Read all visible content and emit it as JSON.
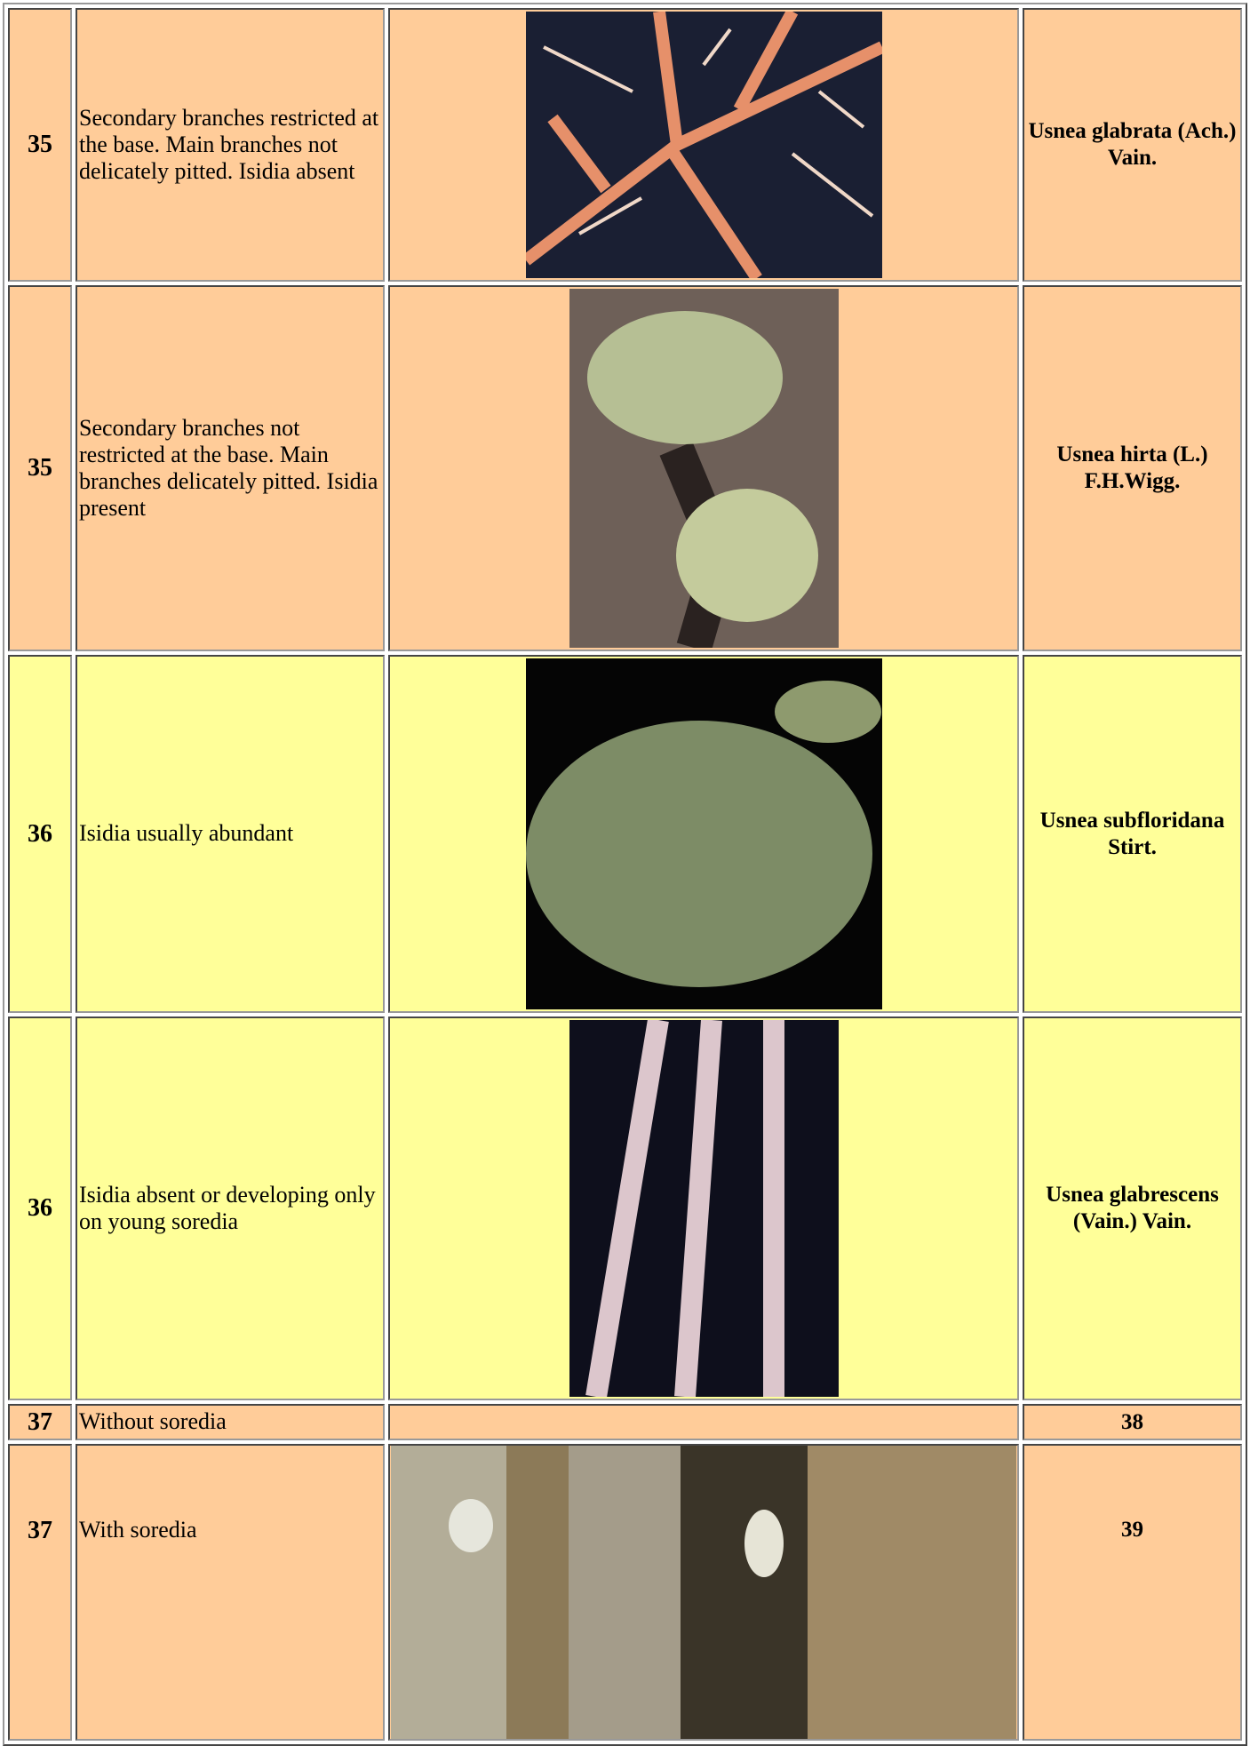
{
  "table": {
    "rows": [
      [
        "35",
        "Secondary branches restricted at the base. Main branches not delicately pitted. Isidia absent",
        "Usnea glabrata (Ach.) Vain."
      ],
      [
        "35",
        "Secondary branches not restricted at the base. Main branches delicately pitted. Isidia present",
        "Usnea hirta (L.) F.H.Wigg."
      ],
      [
        "36",
        "Isidia usually abundant",
        "Usnea subfloridana Stirt."
      ],
      [
        "36",
        "Isidia absent or developing only on young soredia",
        "Usnea glabrescens (Vain.) Vain."
      ],
      [
        "37",
        "Without soredia",
        "38"
      ],
      [
        "37",
        "With soredia",
        "39"
      ]
    ]
  }
}
